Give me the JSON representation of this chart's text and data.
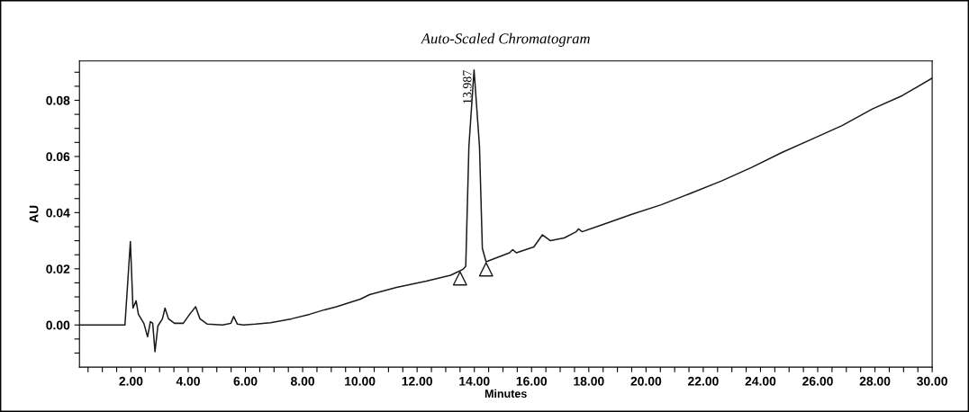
{
  "chart_data": {
    "type": "line",
    "title": "Auto-Scaled Chromatogram",
    "xlabel": "Minutes",
    "ylabel": "AU",
    "xlim": [
      0.2,
      30.0
    ],
    "ylim": [
      -0.015,
      0.094
    ],
    "xticks": [
      {
        "value": 0.5,
        "label": null
      },
      {
        "value": 1.0,
        "label": null
      },
      {
        "value": 1.5,
        "label": null
      },
      {
        "value": 2,
        "label": "2.00"
      },
      {
        "value": 2.5,
        "label": null
      },
      {
        "value": 3.0,
        "label": null
      },
      {
        "value": 3.5,
        "label": null
      },
      {
        "value": 4,
        "label": "4.00"
      },
      {
        "value": 4.5,
        "label": null
      },
      {
        "value": 5.0,
        "label": null
      },
      {
        "value": 5.5,
        "label": null
      },
      {
        "value": 6,
        "label": "6.00"
      },
      {
        "value": 6.5,
        "label": null
      },
      {
        "value": 7.0,
        "label": null
      },
      {
        "value": 7.5,
        "label": null
      },
      {
        "value": 8,
        "label": "8.00"
      },
      {
        "value": 8.5,
        "label": null
      },
      {
        "value": 9.0,
        "label": null
      },
      {
        "value": 9.5,
        "label": null
      },
      {
        "value": 10,
        "label": "10.00"
      },
      {
        "value": 10.5,
        "label": null
      },
      {
        "value": 11.0,
        "label": null
      },
      {
        "value": 11.5,
        "label": null
      },
      {
        "value": 12,
        "label": "12.00"
      },
      {
        "value": 12.5,
        "label": null
      },
      {
        "value": 13.0,
        "label": null
      },
      {
        "value": 13.5,
        "label": null
      },
      {
        "value": 14,
        "label": "14.00"
      },
      {
        "value": 14.5,
        "label": null
      },
      {
        "value": 15.0,
        "label": null
      },
      {
        "value": 15.5,
        "label": null
      },
      {
        "value": 16,
        "label": "16.00"
      },
      {
        "value": 16.5,
        "label": null
      },
      {
        "value": 17.0,
        "label": null
      },
      {
        "value": 17.5,
        "label": null
      },
      {
        "value": 18,
        "label": "18.00"
      },
      {
        "value": 18.5,
        "label": null
      },
      {
        "value": 19.0,
        "label": null
      },
      {
        "value": 19.5,
        "label": null
      },
      {
        "value": 20,
        "label": "20.00"
      },
      {
        "value": 20.5,
        "label": null
      },
      {
        "value": 21.0,
        "label": null
      },
      {
        "value": 21.5,
        "label": null
      },
      {
        "value": 22,
        "label": "22.00"
      },
      {
        "value": 22.5,
        "label": null
      },
      {
        "value": 23.0,
        "label": null
      },
      {
        "value": 23.5,
        "label": null
      },
      {
        "value": 24,
        "label": "24.00"
      },
      {
        "value": 24.5,
        "label": null
      },
      {
        "value": 25.0,
        "label": null
      },
      {
        "value": 25.5,
        "label": null
      },
      {
        "value": 26,
        "label": "26.00"
      },
      {
        "value": 26.5,
        "label": null
      },
      {
        "value": 27.0,
        "label": null
      },
      {
        "value": 27.5,
        "label": null
      },
      {
        "value": 28,
        "label": "28.00"
      },
      {
        "value": 28.5,
        "label": null
      },
      {
        "value": 29.0,
        "label": null
      },
      {
        "value": 29.5,
        "label": null
      },
      {
        "value": 30,
        "label": "30.00"
      }
    ],
    "yticks": [
      {
        "value": -0.01,
        "label": null
      },
      {
        "value": -0.005,
        "label": null
      },
      {
        "value": 0,
        "label": "0.00"
      },
      {
        "value": 0.005,
        "label": null
      },
      {
        "value": 0.01,
        "label": null
      },
      {
        "value": 0.015,
        "label": null
      },
      {
        "value": 0.02,
        "label": "0.02"
      },
      {
        "value": 0.025,
        "label": null
      },
      {
        "value": 0.03,
        "label": null
      },
      {
        "value": 0.035,
        "label": null
      },
      {
        "value": 0.04,
        "label": "0.04"
      },
      {
        "value": 0.045,
        "label": null
      },
      {
        "value": 0.05,
        "label": null
      },
      {
        "value": 0.055,
        "label": null
      },
      {
        "value": 0.06,
        "label": "0.06"
      },
      {
        "value": 0.065,
        "label": null
      },
      {
        "value": 0.07,
        "label": null
      },
      {
        "value": 0.075,
        "label": null
      },
      {
        "value": 0.08,
        "label": "0.08"
      },
      {
        "value": 0.085,
        "label": null
      },
      {
        "value": 0.09,
        "label": null
      }
    ],
    "grid": false,
    "legend": false,
    "series": [
      {
        "color": "#1a1a1a",
        "marker": "none",
        "line_style": "solid",
        "x": [
          0.2,
          1.79,
          1.98,
          2.07,
          2.18,
          2.26,
          2.45,
          2.58,
          2.68,
          2.76,
          2.84,
          2.94,
          3.1,
          3.19,
          3.31,
          3.52,
          3.83,
          4.05,
          4.26,
          4.41,
          4.67,
          5.2,
          5.49,
          5.59,
          5.72,
          5.93,
          6.35,
          6.88,
          7.61,
          8.24,
          8.76,
          9.18,
          10.02,
          10.34,
          11.28,
          12.32,
          13.17,
          13.6,
          13.7,
          13.81,
          13.99,
          14.18,
          14.28,
          14.41,
          15.23,
          15.34,
          15.47,
          16.08,
          16.38,
          16.66,
          17.14,
          17.56,
          17.64,
          17.77,
          18.5,
          19.48,
          20.53,
          21.59,
          22.64,
          23.69,
          24.75,
          25.8,
          26.85,
          27.91,
          28.96,
          30.0
        ],
        "values": [
          0,
          0,
          0.0297,
          0.006,
          0.0086,
          0.0038,
          0.0006,
          -0.0042,
          0.0012,
          0.0006,
          -0.0095,
          -0.0004,
          0.0022,
          0.006,
          0.0022,
          0.0006,
          0.0006,
          0.0038,
          0.0065,
          0.0022,
          0.0003,
          0,
          0.0006,
          0.003,
          0.0003,
          0,
          0.0003,
          0.0008,
          0.0022,
          0.0038,
          0.0054,
          0.0065,
          0.0092,
          0.0108,
          0.0134,
          0.0156,
          0.0177,
          0.0198,
          0.0209,
          0.0636,
          0.0908,
          0.0636,
          0.0273,
          0.0225,
          0.0257,
          0.0268,
          0.0257,
          0.0278,
          0.0321,
          0.03,
          0.031,
          0.0332,
          0.0342,
          0.0332,
          0.0358,
          0.0393,
          0.0428,
          0.047,
          0.0513,
          0.0561,
          0.0614,
          0.0662,
          0.071,
          0.0769,
          0.0817,
          0.0879
        ]
      },
      {
        "type": "scatter",
        "color": "#1a1a1a",
        "marker": "triangle",
        "x": [
          13.5,
          14.41
        ],
        "values": [
          0.0166,
          0.0198
        ]
      }
    ],
    "annotations": [
      {
        "text": "13.987",
        "x": 13.987,
        "y": 0.0908
      }
    ]
  }
}
